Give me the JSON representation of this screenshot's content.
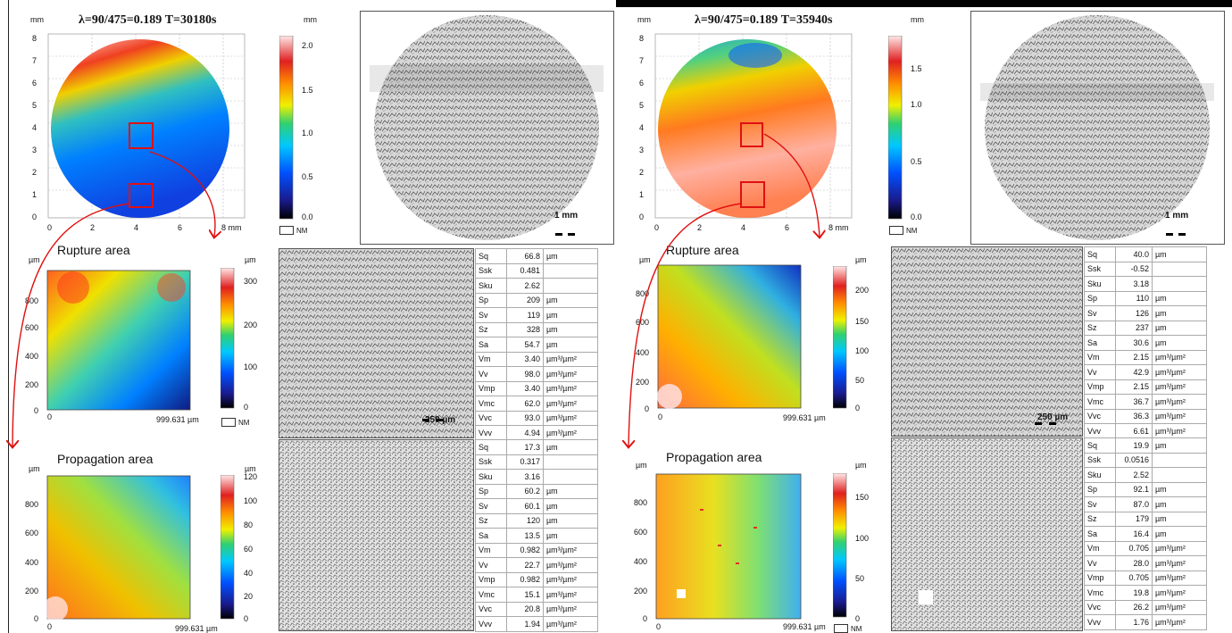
{
  "left": {
    "title": "λ=90/475=0.189  T=30180s",
    "map_unit": "mm",
    "y_ticks": [
      "8",
      "7",
      "6",
      "5",
      "4",
      "3",
      "2",
      "1",
      "0"
    ],
    "x_ticks": [
      "0",
      "2",
      "4",
      "6",
      "8 mm"
    ],
    "colorbar_unit": "mm",
    "colorbar_ticks": [
      "2.0",
      "1.5",
      "1.0",
      "0.5",
      "0.0"
    ],
    "nm_label": "NM",
    "scale_label": "1 mm",
    "rupture": {
      "title": "Rupture area",
      "unit": "µm",
      "y_ticks": [
        "800",
        "600",
        "400",
        "200",
        "0"
      ],
      "x_start": "0",
      "x_end": "999.631 µm",
      "colorbar_unit": "µm",
      "colorbar_ticks": [
        "300",
        "200",
        "100",
        "0"
      ],
      "nm_label": "NM",
      "scale_label": "250 µm",
      "params": [
        [
          "Sq",
          "66.8",
          "µm"
        ],
        [
          "Ssk",
          "0.481",
          ""
        ],
        [
          "Sku",
          "2.62",
          ""
        ],
        [
          "Sp",
          "209",
          "µm"
        ],
        [
          "Sv",
          "119",
          "µm"
        ],
        [
          "Sz",
          "328",
          "µm"
        ],
        [
          "Sa",
          "54.7",
          "µm"
        ],
        [
          "Vm",
          "3.40",
          "µm³/µm²"
        ],
        [
          "Vv",
          "98.0",
          "µm³/µm²"
        ],
        [
          "Vmp",
          "3.40",
          "µm³/µm²"
        ],
        [
          "Vmc",
          "62.0",
          "µm³/µm²"
        ],
        [
          "Vvc",
          "93.0",
          "µm³/µm²"
        ],
        [
          "Vvv",
          "4.94",
          "µm³/µm²"
        ]
      ]
    },
    "propagation": {
      "title": "Propagation area",
      "unit": "µm",
      "y_ticks": [
        "800",
        "600",
        "400",
        "200",
        "0"
      ],
      "x_start": "0",
      "x_end": "999.631 µm",
      "colorbar_unit": "µm",
      "colorbar_ticks": [
        "120",
        "100",
        "80",
        "60",
        "40",
        "20",
        "0"
      ],
      "params": [
        [
          "Sq",
          "17.3",
          "µm"
        ],
        [
          "Ssk",
          "0.317",
          ""
        ],
        [
          "Sku",
          "3.16",
          ""
        ],
        [
          "Sp",
          "60.2",
          "µm"
        ],
        [
          "Sv",
          "60.1",
          "µm"
        ],
        [
          "Sz",
          "120",
          "µm"
        ],
        [
          "Sa",
          "13.5",
          "µm"
        ],
        [
          "Vm",
          "0.982",
          "µm³/µm²"
        ],
        [
          "Vv",
          "22.7",
          "µm³/µm²"
        ],
        [
          "Vmp",
          "0.982",
          "µm³/µm²"
        ],
        [
          "Vmc",
          "15.1",
          "µm³/µm²"
        ],
        [
          "Vvc",
          "20.8",
          "µm³/µm²"
        ],
        [
          "Vvv",
          "1.94",
          "µm³/µm²"
        ]
      ]
    }
  },
  "right": {
    "title": "λ=90/475=0.189  T=35940s",
    "map_unit": "mm",
    "y_ticks": [
      "8",
      "7",
      "6",
      "5",
      "4",
      "3",
      "2",
      "1",
      "0"
    ],
    "x_ticks": [
      "0",
      "2",
      "4",
      "6",
      "8 mm"
    ],
    "colorbar_unit": "mm",
    "colorbar_ticks": [
      "1.5",
      "1.0",
      "0.5",
      "0.0"
    ],
    "nm_label": "NM",
    "scale_label": "1 mm",
    "rupture": {
      "title": "Rupture area",
      "unit": "µm",
      "y_ticks": [
        "800",
        "600",
        "400",
        "200",
        "0"
      ],
      "x_start": "0",
      "x_end": "999.631 µm",
      "colorbar_unit": "µm",
      "colorbar_ticks": [
        "200",
        "150",
        "100",
        "50",
        "0"
      ],
      "scale_label": "250 µm",
      "params": [
        [
          "Sq",
          "40.0",
          "µm"
        ],
        [
          "Ssk",
          "-0.52",
          ""
        ],
        [
          "Sku",
          "3.18",
          ""
        ],
        [
          "Sp",
          "110",
          "µm"
        ],
        [
          "Sv",
          "126",
          "µm"
        ],
        [
          "Sz",
          "237",
          "µm"
        ],
        [
          "Sa",
          "30.6",
          "µm"
        ],
        [
          "Vm",
          "2.15",
          "µm³/µm²"
        ],
        [
          "Vv",
          "42.9",
          "µm³/µm²"
        ],
        [
          "Vmp",
          "2.15",
          "µm³/µm²"
        ],
        [
          "Vmc",
          "36.7",
          "µm³/µm²"
        ],
        [
          "Vvc",
          "36.3",
          "µm³/µm²"
        ],
        [
          "Vvv",
          "6.61",
          "µm³/µm²"
        ]
      ]
    },
    "propagation": {
      "title": "Propagation area",
      "unit": "µm",
      "y_ticks": [
        "800",
        "600",
        "400",
        "200",
        "0"
      ],
      "x_start": "0",
      "x_end": "999.631 µm",
      "colorbar_unit": "µm",
      "colorbar_ticks": [
        "150",
        "100",
        "50",
        "0"
      ],
      "nm_label": "NM",
      "params": [
        [
          "Sq",
          "19.9",
          "µm"
        ],
        [
          "Ssk",
          "0.0516",
          ""
        ],
        [
          "Sku",
          "2.52",
          ""
        ],
        [
          "Sp",
          "92.1",
          "µm"
        ],
        [
          "Sv",
          "87.0",
          "µm"
        ],
        [
          "Sz",
          "179",
          "µm"
        ],
        [
          "Sa",
          "16.4",
          "µm"
        ],
        [
          "Vm",
          "0.705",
          "µm³/µm²"
        ],
        [
          "Vv",
          "28.0",
          "µm³/µm²"
        ],
        [
          "Vmp",
          "0.705",
          "µm³/µm²"
        ],
        [
          "Vmc",
          "19.8",
          "µm³/µm²"
        ],
        [
          "Vvc",
          "26.2",
          "µm³/µm²"
        ],
        [
          "Vvv",
          "1.76",
          "µm³/µm²"
        ]
      ]
    }
  },
  "colors": {
    "marker": "#e01010",
    "colormap": [
      "#1a1a8c",
      "#0050ff",
      "#00c8ff",
      "#30d070",
      "#f0f000",
      "#ff8c00",
      "#e02020",
      "#ffe6e6"
    ]
  }
}
